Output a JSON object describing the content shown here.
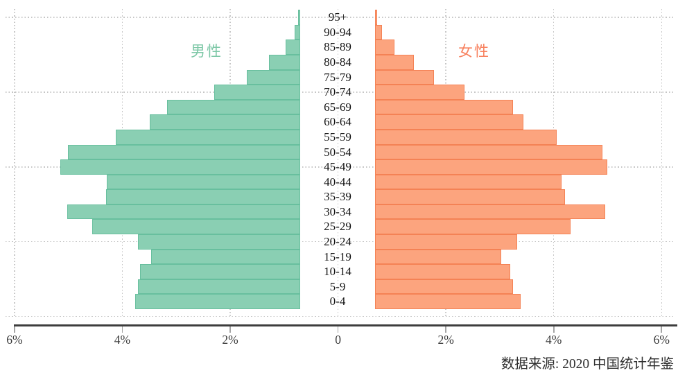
{
  "chart_data": {
    "type": "bar",
    "subtype": "population_pyramid",
    "title": "",
    "xlabel": "",
    "ylabel": "",
    "categories": [
      "95+",
      "90-94",
      "85-89",
      "80-84",
      "75-79",
      "70-74",
      "65-69",
      "60-64",
      "55-59",
      "50-54",
      "45-49",
      "40-44",
      "35-39",
      "30-34",
      "25-29",
      "20-24",
      "15-19",
      "10-14",
      "5-9",
      "0-4"
    ],
    "series": [
      {
        "name": "男性",
        "side": "left",
        "fill": "#8acfb3",
        "stroke": "#68bf9e",
        "label_color": "#7cc7a6",
        "values": [
          0.05,
          0.11,
          0.28,
          0.58,
          0.99,
          1.6,
          2.48,
          2.79,
          3.42,
          4.31,
          4.46,
          3.59,
          3.61,
          4.32,
          3.86,
          3.01,
          2.77,
          2.97,
          3.01,
          3.07
        ]
      },
      {
        "name": "女性",
        "side": "right",
        "fill": "#fca47e",
        "stroke": "#f48255",
        "label_color": "#f8815e",
        "values": [
          0.05,
          0.13,
          0.37,
          0.73,
          1.1,
          1.67,
          2.57,
          2.76,
          3.38,
          4.22,
          4.31,
          3.46,
          3.53,
          4.28,
          3.63,
          2.64,
          2.34,
          2.51,
          2.56,
          2.7
        ]
      }
    ],
    "x_axis": {
      "tick_labels": [
        "6%",
        "4%",
        "2%",
        "0",
        "2%",
        "4%",
        "6%"
      ],
      "tick_values": [
        -6,
        -4,
        -2,
        0,
        2,
        4,
        6
      ],
      "xlim": [
        -6,
        6
      ]
    },
    "grid": true,
    "legend_position": "inside-top",
    "source_note": "数据来源: 2020 中国统计年鉴"
  }
}
